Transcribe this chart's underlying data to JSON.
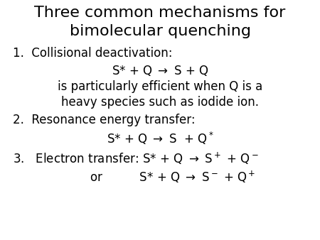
{
  "title_line1": "Three common mechanisms for",
  "title_line2": "bimolecular quenching",
  "background_color": "#ffffff",
  "text_color": "#000000",
  "title_fontsize": 16,
  "body_fontsize": 12,
  "font_family": "DejaVu Sans"
}
